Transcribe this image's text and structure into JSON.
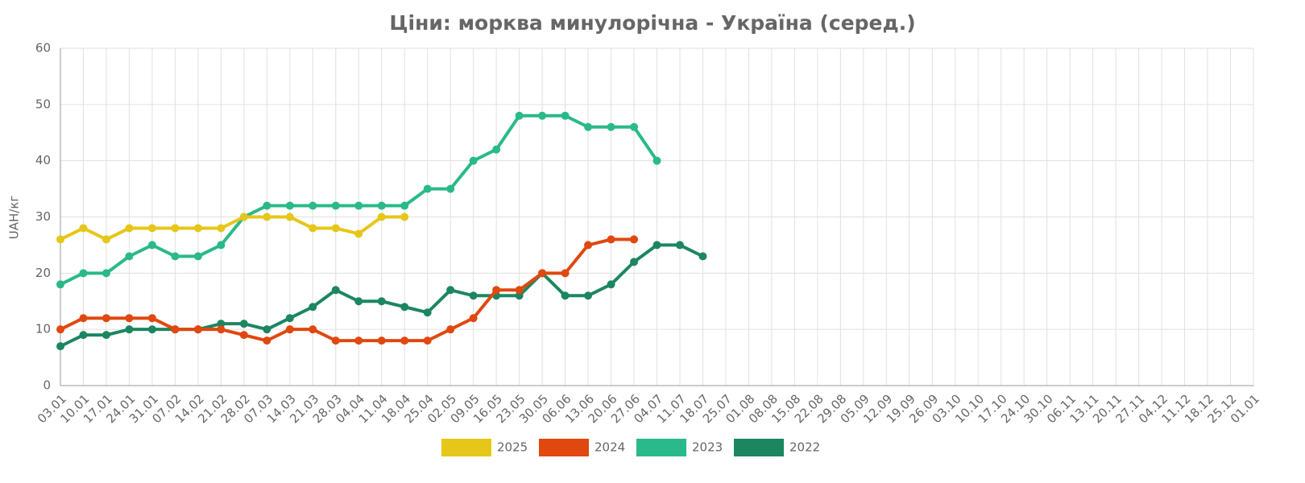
{
  "chart_data": {
    "type": "line",
    "title": "Ціни: морква минулорічна - Україна (серед.)",
    "y_label": "UAH/кг",
    "categories": [
      "03.01",
      "10.01",
      "17.01",
      "24.01",
      "31.01",
      "07.02",
      "14.02",
      "21.02",
      "28.02",
      "07.03",
      "14.03",
      "21.03",
      "28.03",
      "04.04",
      "11.04",
      "18.04",
      "25.04",
      "02.05",
      "09.05",
      "16.05",
      "23.05",
      "30.05",
      "06.06",
      "13.06",
      "20.06",
      "27.06",
      "04.07",
      "11.07",
      "18.07",
      "25.07",
      "01.08",
      "08.08",
      "15.08",
      "22.08",
      "29.08",
      "05.09",
      "12.09",
      "19.09",
      "26.09",
      "03.10",
      "10.10",
      "17.10",
      "24.10",
      "30.10",
      "06.11",
      "13.11",
      "20.11",
      "27.11",
      "04.12",
      "11.12",
      "18.12",
      "25.12",
      "01.01"
    ],
    "ylim": [
      0,
      60
    ],
    "yticks": [
      0,
      10,
      20,
      30,
      40,
      50,
      60
    ],
    "grid": true,
    "legend": "bottom",
    "series": [
      {
        "name": "2025",
        "color": "#e6c619",
        "values": [
          26,
          28,
          26,
          28,
          28,
          28,
          28,
          28,
          30,
          30,
          30,
          28,
          28,
          27,
          30,
          30,
          null,
          null,
          null,
          null,
          null,
          null,
          null,
          null,
          null,
          null,
          null,
          null,
          null,
          null,
          null,
          null,
          null,
          null,
          null,
          null,
          null,
          null,
          null,
          null,
          null,
          null,
          null,
          null,
          null,
          null,
          null,
          null,
          null,
          null,
          null,
          null,
          null
        ]
      },
      {
        "name": "2024",
        "color": "#e0480f",
        "values": [
          10,
          12,
          12,
          12,
          12,
          10,
          10,
          10,
          9,
          8,
          10,
          10,
          8,
          8,
          8,
          8,
          8,
          10,
          12,
          17,
          17,
          20,
          20,
          25,
          26,
          26,
          null,
          null,
          null,
          null,
          null,
          null,
          null,
          null,
          null,
          null,
          null,
          null,
          null,
          null,
          null,
          null,
          null,
          null,
          null,
          null,
          null,
          null,
          null,
          null,
          null,
          null,
          null
        ]
      },
      {
        "name": "2023",
        "color": "#2ab98a",
        "values": [
          18,
          20,
          20,
          23,
          25,
          23,
          23,
          25,
          30,
          32,
          32,
          32,
          32,
          32,
          32,
          32,
          35,
          35,
          40,
          42,
          48,
          48,
          48,
          46,
          46,
          46,
          40,
          null,
          null,
          null,
          null,
          null,
          null,
          null,
          null,
          null,
          null,
          null,
          null,
          null,
          null,
          null,
          null,
          null,
          null,
          null,
          null,
          null,
          null,
          null,
          null,
          null,
          null
        ]
      },
      {
        "name": "2022",
        "color": "#1c8660",
        "values": [
          7,
          9,
          9,
          10,
          10,
          10,
          10,
          11,
          11,
          10,
          12,
          14,
          17,
          15,
          15,
          14,
          13,
          17,
          16,
          16,
          16,
          20,
          16,
          16,
          18,
          22,
          25,
          25,
          23,
          null,
          null,
          null,
          null,
          null,
          null,
          null,
          null,
          null,
          null,
          null,
          null,
          null,
          null,
          null,
          null,
          null,
          null,
          null,
          null,
          null,
          null,
          null,
          null
        ]
      }
    ]
  }
}
